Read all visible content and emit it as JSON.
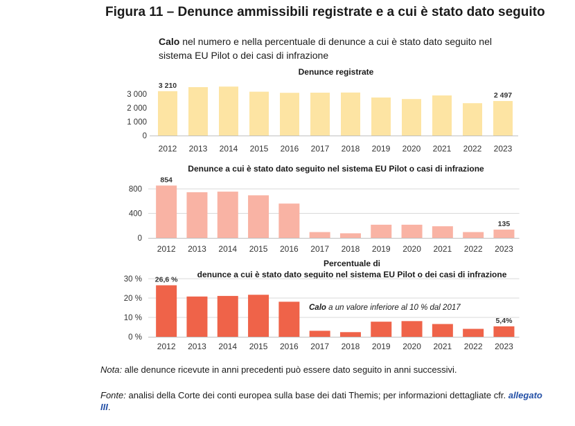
{
  "figure_title": "Figura 11 – Denunce ammissibili registrate e a cui è stato dato seguito",
  "subtitle_bold": "Calo",
  "subtitle_rest": " nel numero e nella percentuale di denunce a cui è stato dato seguito nel sistema EU Pilot o dei casi di infrazione",
  "note_label": "Nota:",
  "note_text": " alle denunce ricevute in anni precedenti può essere dato seguito in anni successivi.",
  "source_label": "Fonte:",
  "source_text": " analisi della Corte dei conti europea sulla base dei dati Themis; per informazioni dettagliate cfr. ",
  "source_link": "allegato III",
  "source_end": ".",
  "chart_data": [
    {
      "type": "bar",
      "title": "Denunce registrate",
      "categories": [
        "2012",
        "2013",
        "2014",
        "2015",
        "2016",
        "2017",
        "2018",
        "2019",
        "2020",
        "2021",
        "2022",
        "2023"
      ],
      "values": [
        3210,
        3500,
        3540,
        3170,
        3090,
        3100,
        3110,
        2750,
        2640,
        2900,
        2340,
        2497
      ],
      "data_labels": [
        {
          "index": 0,
          "text": "3 210"
        },
        {
          "index": 11,
          "text": "2 497"
        }
      ],
      "yticks": [
        0,
        1000,
        2000,
        3000
      ],
      "ytick_labels": [
        "0",
        "1 000",
        "2 000",
        "3 000"
      ],
      "ylim": [
        0,
        3600
      ],
      "color": "#fde4a3",
      "grid": false
    },
    {
      "type": "bar",
      "title": "Denunce a cui è stato dato seguito nel sistema EU Pilot o casi di infrazione",
      "categories": [
        "2012",
        "2013",
        "2014",
        "2015",
        "2016",
        "2017",
        "2018",
        "2019",
        "2020",
        "2021",
        "2022",
        "2023"
      ],
      "values": [
        854,
        745,
        755,
        695,
        560,
        95,
        75,
        215,
        215,
        190,
        95,
        135
      ],
      "data_labels": [
        {
          "index": 0,
          "text": "854"
        },
        {
          "index": 11,
          "text": "135"
        }
      ],
      "yticks": [
        0,
        400,
        800
      ],
      "ytick_labels": [
        "0",
        "400",
        "800"
      ],
      "ylim": [
        0,
        880
      ],
      "color": "#f9b3a4",
      "grid": true
    },
    {
      "type": "bar",
      "title_lines": [
        "Percentuale di",
        "denunce a cui è stato dato seguito nel sistema EU Pilot o dei casi di infrazione"
      ],
      "categories": [
        "2012",
        "2013",
        "2014",
        "2015",
        "2016",
        "2017",
        "2018",
        "2019",
        "2020",
        "2021",
        "2022",
        "2023"
      ],
      "values": [
        26.6,
        20.8,
        21.1,
        21.7,
        18.1,
        3.1,
        2.4,
        7.8,
        8.1,
        6.6,
        4.1,
        5.4
      ],
      "data_labels": [
        {
          "index": 0,
          "text": "26,6 %"
        },
        {
          "index": 11,
          "text": "5,4%"
        }
      ],
      "yticks": [
        0,
        10,
        20,
        30
      ],
      "ytick_labels": [
        "0 %",
        "10 %",
        "20 %",
        "30 %"
      ],
      "ylim": [
        0,
        30
      ],
      "color": "#ef6349",
      "grid": true,
      "annotation_bold": "Calo",
      "annotation_rest": " a un valore inferiore al 10 % dal 2017"
    }
  ]
}
